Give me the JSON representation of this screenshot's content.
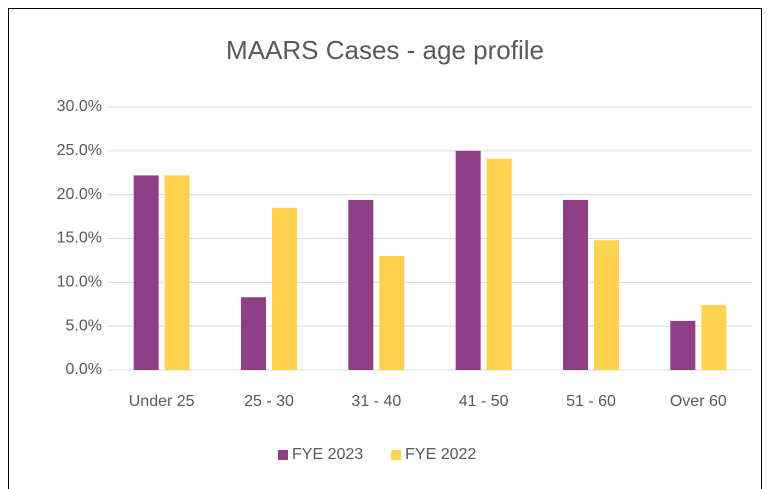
{
  "chart_data": {
    "type": "bar",
    "title": "MAARS Cases - age profile",
    "categories": [
      "Under 25",
      "25 - 30",
      "31 - 40",
      "41 - 50",
      "51 - 60",
      "Over 60"
    ],
    "series": [
      {
        "name": "FYE 2023",
        "color": "#8e3f88",
        "values": [
          22.2,
          8.3,
          19.4,
          25.0,
          19.4,
          5.6
        ]
      },
      {
        "name": "FYE 2022",
        "color": "#ffd34d",
        "values": [
          22.2,
          18.5,
          13.0,
          24.1,
          14.8,
          7.4
        ]
      }
    ],
    "ylim": [
      0,
      30
    ],
    "yticks": [
      {
        "value": 0,
        "label": "0.0%"
      },
      {
        "value": 5,
        "label": "5.0%"
      },
      {
        "value": 10,
        "label": "10.0%"
      },
      {
        "value": 15,
        "label": "15.0%"
      },
      {
        "value": 20,
        "label": "20.0%"
      },
      {
        "value": 25,
        "label": "25.0%"
      },
      {
        "value": 30,
        "label": "30.0%"
      }
    ],
    "grid": true,
    "legend": "bottom"
  }
}
